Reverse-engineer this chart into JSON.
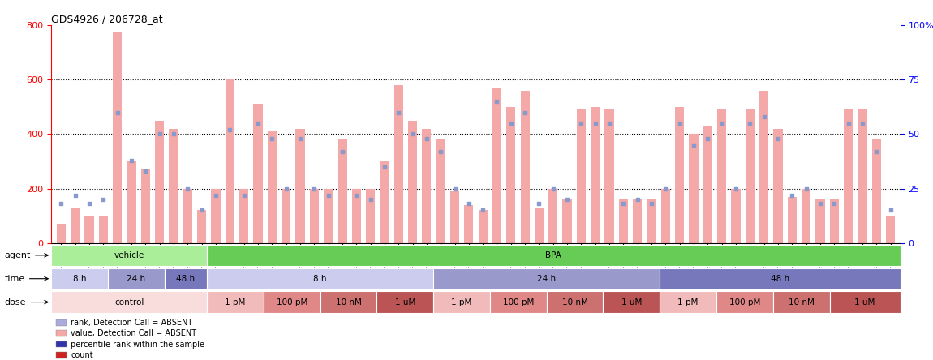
{
  "title": "GDS4926 / 206728_at",
  "samples": [
    "GSM439987",
    "GSM439988",
    "GSM439989",
    "GSM439990",
    "GSM439991",
    "GSM439992",
    "GSM439993",
    "GSM439994",
    "GSM439995",
    "GSM439996",
    "GSM439997",
    "GSM439998",
    "GSM440035",
    "GSM440036",
    "GSM440037",
    "GSM440038",
    "GSM440011",
    "GSM440012",
    "GSM440013",
    "GSM440014",
    "GSM439999",
    "GSM440000",
    "GSM440001",
    "GSM440002",
    "GSM440023",
    "GSM440024",
    "GSM440025",
    "GSM440026",
    "GSM440039",
    "GSM440040",
    "GSM440041",
    "GSM440042",
    "GSM440015",
    "GSM440016",
    "GSM440017",
    "GSM440018",
    "GSM440003",
    "GSM440004",
    "GSM440005",
    "GSM440006",
    "GSM440027",
    "GSM440028",
    "GSM440029",
    "GSM440030",
    "GSM440043",
    "GSM440044",
    "GSM440045",
    "GSM440046",
    "GSM440019",
    "GSM440020",
    "GSM440021",
    "GSM440022",
    "GSM440007",
    "GSM440008",
    "GSM440009",
    "GSM440010",
    "GSM440031",
    "GSM440032",
    "GSM440033",
    "GSM440034"
  ],
  "bar_values": [
    70,
    130,
    100,
    100,
    775,
    300,
    270,
    450,
    420,
    200,
    120,
    200,
    600,
    200,
    510,
    410,
    200,
    420,
    200,
    200,
    380,
    200,
    200,
    300,
    580,
    450,
    420,
    380,
    190,
    140,
    120,
    570,
    500,
    560,
    130,
    200,
    160,
    490,
    500,
    490,
    160,
    160,
    160,
    200,
    500,
    400,
    430,
    490,
    200,
    490,
    560,
    420,
    170,
    200,
    160,
    160,
    490,
    490,
    380,
    100
  ],
  "dot_values": [
    18,
    22,
    18,
    20,
    60,
    38,
    33,
    50,
    50,
    25,
    15,
    22,
    52,
    22,
    55,
    48,
    25,
    48,
    25,
    22,
    42,
    22,
    20,
    35,
    60,
    50,
    48,
    42,
    25,
    18,
    15,
    65,
    55,
    60,
    18,
    25,
    20,
    55,
    55,
    55,
    18,
    20,
    18,
    25,
    55,
    45,
    48,
    55,
    25,
    55,
    58,
    48,
    22,
    25,
    18,
    18,
    55,
    55,
    42,
    15
  ],
  "ylim_left": [
    0,
    800
  ],
  "ylim_right": [
    0,
    100
  ],
  "yticks_left": [
    0,
    200,
    400,
    600,
    800
  ],
  "yticks_right": [
    0,
    25,
    50,
    75,
    100
  ],
  "bar_color": "#f4a9a8",
  "dot_color": "#8899cc",
  "agent_row": [
    {
      "label": "vehicle",
      "start": 0,
      "end": 11,
      "color": "#aaee99"
    },
    {
      "label": "BPA",
      "start": 11,
      "end": 60,
      "color": "#66cc55"
    }
  ],
  "time_row": [
    {
      "label": "8 h",
      "start": 0,
      "end": 4,
      "color": "#ccccee"
    },
    {
      "label": "24 h",
      "start": 4,
      "end": 8,
      "color": "#9999cc"
    },
    {
      "label": "48 h",
      "start": 8,
      "end": 11,
      "color": "#7777bb"
    },
    {
      "label": "8 h",
      "start": 11,
      "end": 27,
      "color": "#ccccee"
    },
    {
      "label": "24 h",
      "start": 27,
      "end": 43,
      "color": "#9999cc"
    },
    {
      "label": "48 h",
      "start": 43,
      "end": 60,
      "color": "#7777bb"
    }
  ],
  "dose_row": [
    {
      "label": "control",
      "start": 0,
      "end": 11,
      "color": "#f9dddd"
    },
    {
      "label": "1 pM",
      "start": 11,
      "end": 15,
      "color": "#f2bbbb"
    },
    {
      "label": "100 pM",
      "start": 15,
      "end": 19,
      "color": "#e08888"
    },
    {
      "label": "10 nM",
      "start": 19,
      "end": 23,
      "color": "#cc7070"
    },
    {
      "label": "1 uM",
      "start": 23,
      "end": 27,
      "color": "#bb5555"
    },
    {
      "label": "1 pM",
      "start": 27,
      "end": 31,
      "color": "#f2bbbb"
    },
    {
      "label": "100 pM",
      "start": 31,
      "end": 35,
      "color": "#e08888"
    },
    {
      "label": "10 nM",
      "start": 35,
      "end": 39,
      "color": "#cc7070"
    },
    {
      "label": "1 uM",
      "start": 39,
      "end": 43,
      "color": "#bb5555"
    },
    {
      "label": "1 pM",
      "start": 43,
      "end": 47,
      "color": "#f2bbbb"
    },
    {
      "label": "100 pM",
      "start": 47,
      "end": 51,
      "color": "#e08888"
    },
    {
      "label": "10 nM",
      "start": 51,
      "end": 55,
      "color": "#cc7070"
    },
    {
      "label": "1 uM",
      "start": 55,
      "end": 60,
      "color": "#bb5555"
    }
  ],
  "legend_items": [
    {
      "color": "#cc2222",
      "label": "count"
    },
    {
      "color": "#3333aa",
      "label": "percentile rank within the sample"
    },
    {
      "color": "#f4a9a8",
      "label": "value, Detection Call = ABSENT"
    },
    {
      "color": "#aaaadd",
      "label": "rank, Detection Call = ABSENT"
    }
  ],
  "background_color": "#ffffff"
}
